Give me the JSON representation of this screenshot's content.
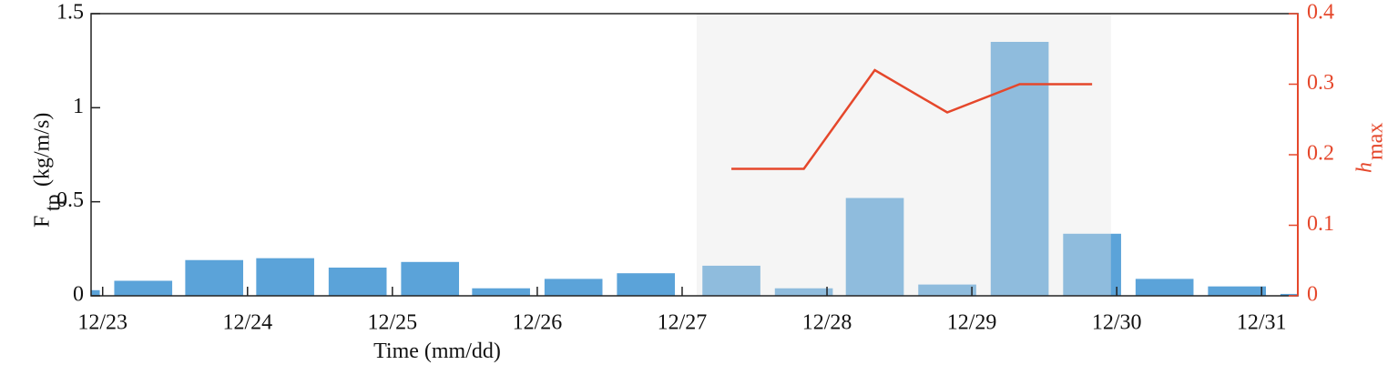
{
  "chart_data": {
    "type": "bar",
    "xlabel": "Time (mm/dd)",
    "ylabel": {
      "main": "F",
      "sub": "tp",
      "unit": "(kg/m/s)"
    },
    "y2label": {
      "main": "h",
      "sub": "max"
    },
    "xlim": [
      22.92,
      31.25
    ],
    "xticks": [
      {
        "value": 23,
        "label": "12/23"
      },
      {
        "value": 24,
        "label": "12/24"
      },
      {
        "value": 25,
        "label": "12/25"
      },
      {
        "value": 26,
        "label": "12/26"
      },
      {
        "value": 27,
        "label": "12/27"
      },
      {
        "value": 28,
        "label": "12/28"
      },
      {
        "value": 29,
        "label": "12/29"
      },
      {
        "value": 30,
        "label": "12/30"
      },
      {
        "value": 31,
        "label": "12/31"
      }
    ],
    "ylim": [
      0,
      1.5
    ],
    "yticks": [
      0,
      0.5,
      1,
      1.5
    ],
    "y2lim": [
      0,
      0.4
    ],
    "y2ticks": [
      0,
      0.1,
      0.2,
      0.3,
      0.4
    ],
    "highlight": [
      27.1,
      29.96
    ],
    "series": [
      {
        "type": "bar",
        "color": "#5ba3d9",
        "x": [
          22.78,
          23.28,
          23.77,
          24.26,
          24.76,
          25.26,
          25.75,
          26.25,
          26.75,
          27.34,
          27.84,
          28.33,
          28.83,
          29.33,
          29.83,
          30.33,
          30.83,
          31.33
        ],
        "values": [
          0.03,
          0.08,
          0.19,
          0.2,
          0.15,
          0.18,
          0.04,
          0.09,
          0.12,
          0.16,
          0.04,
          0.52,
          0.06,
          1.35,
          0.33,
          0.09,
          0.05,
          0.01
        ]
      },
      {
        "type": "line",
        "axis": "y2",
        "color": "#e5472b",
        "x": [
          27.34,
          27.84,
          28.33,
          28.83,
          29.33,
          29.83
        ],
        "values": [
          0.18,
          0.18,
          0.32,
          0.26,
          0.3,
          0.3
        ]
      }
    ]
  }
}
